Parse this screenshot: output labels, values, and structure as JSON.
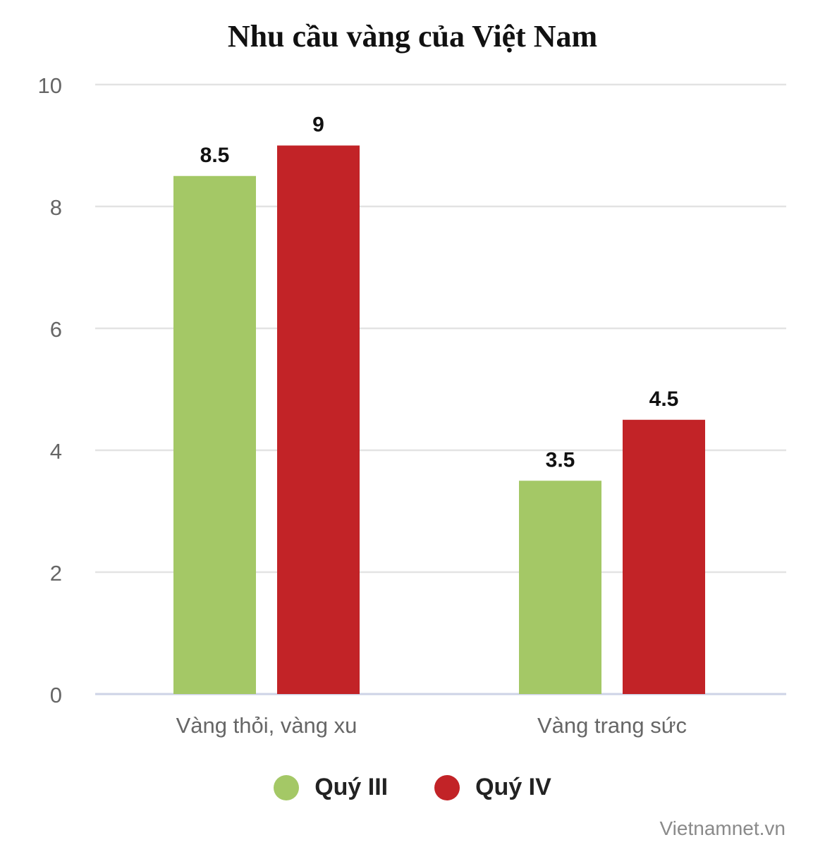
{
  "chart_data": {
    "type": "bar",
    "title": "Nhu cầu vàng của Việt Nam",
    "categories": [
      "Vàng thỏi, vàng xu",
      "Vàng trang sức"
    ],
    "series": [
      {
        "name": "Quý III",
        "values": [
          8.5,
          3.5
        ],
        "color": "#a4c866",
        "labels": [
          "8.5",
          "3.5"
        ]
      },
      {
        "name": "Quý IV",
        "values": [
          9,
          4.5
        ],
        "color": "#c22327",
        "labels": [
          "9",
          "4.5"
        ]
      }
    ],
    "ylim": [
      0,
      10
    ],
    "yticks": [
      0,
      2,
      4,
      6,
      8,
      10
    ],
    "ytick_labels": [
      "0",
      "2",
      "4",
      "6",
      "8",
      "10"
    ],
    "grid": true,
    "legend_position": "bottom-center",
    "xlabel": "",
    "ylabel": ""
  },
  "credit": "Vietnamnet.vn",
  "colors": {
    "grid": "#e3e3e3",
    "axis": "#cdd3e6",
    "tick_text": "#666666",
    "data_label": "#111111"
  }
}
